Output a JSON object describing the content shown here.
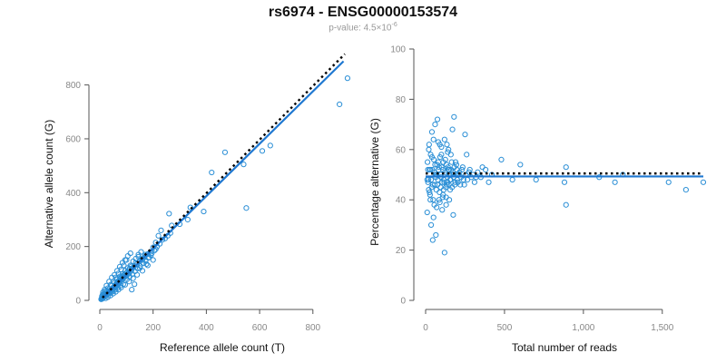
{
  "header": {
    "title": "rs6974 - ENSG00000153574",
    "pvalue_prefix": "p-value: 4.5×10",
    "pvalue_exponent": "-6"
  },
  "colors": {
    "points": "#2b8fd6",
    "fit_line": "#1f78d1",
    "reference_line": "#000000"
  },
  "chart_data": [
    {
      "type": "scatter",
      "title": "",
      "xlabel": "Reference allele count (T)",
      "ylabel": "Alternative allele count (G)",
      "xlim": [
        0,
        920
      ],
      "ylim": [
        0,
        920
      ],
      "xticks": [
        0,
        200,
        400,
        600,
        800
      ],
      "yticks": [
        0,
        200,
        400,
        600,
        800
      ],
      "reference_line": {
        "style": "dotted",
        "from": [
          10,
          10
        ],
        "to": [
          920,
          915
        ]
      },
      "fit_line": {
        "from": [
          10,
          8
        ],
        "to": [
          915,
          888
        ]
      },
      "points": [
        [
          930,
          825
        ],
        [
          900,
          728
        ],
        [
          640,
          575
        ],
        [
          610,
          555
        ],
        [
          540,
          505
        ],
        [
          470,
          550
        ],
        [
          420,
          475
        ],
        [
          550,
          343
        ],
        [
          340,
          345
        ],
        [
          390,
          330
        ],
        [
          300,
          283
        ],
        [
          330,
          300
        ],
        [
          270,
          278
        ],
        [
          260,
          322
        ],
        [
          230,
          260
        ],
        [
          220,
          240
        ],
        [
          210,
          215
        ],
        [
          200,
          197
        ],
        [
          210,
          190
        ],
        [
          190,
          180
        ],
        [
          180,
          172
        ],
        [
          170,
          165
        ],
        [
          165,
          158
        ],
        [
          155,
          152
        ],
        [
          150,
          146
        ],
        [
          145,
          162
        ],
        [
          140,
          135
        ],
        [
          135,
          140
        ],
        [
          130,
          128
        ],
        [
          125,
          122
        ],
        [
          120,
          115
        ],
        [
          118,
          126
        ],
        [
          115,
          108
        ],
        [
          112,
          118
        ],
        [
          110,
          100
        ],
        [
          108,
          110
        ],
        [
          105,
          97
        ],
        [
          103,
          105
        ],
        [
          100,
          93
        ],
        [
          98,
          90
        ],
        [
          96,
          100
        ],
        [
          94,
          88
        ],
        [
          92,
          96
        ],
        [
          90,
          84
        ],
        [
          88,
          92
        ],
        [
          86,
          80
        ],
        [
          84,
          88
        ],
        [
          82,
          76
        ],
        [
          80,
          84
        ],
        [
          78,
          72
        ],
        [
          76,
          80
        ],
        [
          75,
          68
        ],
        [
          73,
          75
        ],
        [
          72,
          64
        ],
        [
          70,
          72
        ],
        [
          69,
          60
        ],
        [
          68,
          70
        ],
        [
          66,
          58
        ],
        [
          65,
          66
        ],
        [
          64,
          55
        ],
        [
          62,
          62
        ],
        [
          61,
          52
        ],
        [
          60,
          58
        ],
        [
          58,
          50
        ],
        [
          57,
          55
        ],
        [
          56,
          48
        ],
        [
          55,
          52
        ],
        [
          54,
          45
        ],
        [
          52,
          50
        ],
        [
          51,
          42
        ],
        [
          50,
          47
        ],
        [
          49,
          40
        ],
        [
          48,
          45
        ],
        [
          46,
          38
        ],
        [
          45,
          43
        ],
        [
          44,
          36
        ],
        [
          43,
          40
        ],
        [
          42,
          34
        ],
        [
          40,
          38
        ],
        [
          39,
          32
        ],
        [
          38,
          35
        ],
        [
          36,
          30
        ],
        [
          35,
          33
        ],
        [
          34,
          28
        ],
        [
          33,
          30
        ],
        [
          32,
          26
        ],
        [
          30,
          28
        ],
        [
          29,
          24
        ],
        [
          28,
          26
        ],
        [
          26,
          22
        ],
        [
          25,
          24
        ],
        [
          24,
          20
        ],
        [
          23,
          22
        ],
        [
          22,
          18
        ],
        [
          20,
          20
        ],
        [
          19,
          16
        ],
        [
          18,
          18
        ],
        [
          17,
          14
        ],
        [
          16,
          16
        ],
        [
          15,
          12
        ],
        [
          14,
          14
        ],
        [
          13,
          10
        ],
        [
          12,
          12
        ],
        [
          11,
          8
        ],
        [
          10,
          10
        ],
        [
          9,
          6
        ],
        [
          8,
          8
        ],
        [
          7,
          5
        ],
        [
          6,
          6
        ],
        [
          5,
          4
        ],
        [
          12,
          30
        ],
        [
          18,
          40
        ],
        [
          25,
          55
        ],
        [
          35,
          70
        ],
        [
          45,
          85
        ],
        [
          55,
          95
        ],
        [
          65,
          110
        ],
        [
          75,
          125
        ],
        [
          85,
          140
        ],
        [
          95,
          150
        ],
        [
          105,
          165
        ],
        [
          115,
          175
        ],
        [
          100,
          150
        ],
        [
          90,
          130
        ],
        [
          80,
          115
        ],
        [
          70,
          100
        ],
        [
          60,
          85
        ],
        [
          50,
          70
        ],
        [
          40,
          58
        ],
        [
          30,
          45
        ],
        [
          20,
          35
        ],
        [
          15,
          25
        ],
        [
          10,
          20
        ],
        [
          8,
          15
        ],
        [
          22,
          8
        ],
        [
          30,
          12
        ],
        [
          40,
          18
        ],
        [
          50,
          25
        ],
        [
          60,
          32
        ],
        [
          70,
          40
        ],
        [
          80,
          48
        ],
        [
          95,
          58
        ],
        [
          110,
          70
        ],
        [
          125,
          82
        ],
        [
          140,
          95
        ],
        [
          160,
          110
        ],
        [
          180,
          130
        ],
        [
          200,
          150
        ],
        [
          120,
          40
        ],
        [
          130,
          60
        ],
        [
          150,
          120
        ],
        [
          160,
          150
        ],
        [
          170,
          170
        ],
        [
          175,
          135
        ],
        [
          185,
          160
        ],
        [
          195,
          175
        ],
        [
          205,
          185
        ],
        [
          215,
          200
        ],
        [
          225,
          210
        ],
        [
          235,
          225
        ],
        [
          245,
          230
        ],
        [
          255,
          240
        ],
        [
          265,
          250
        ],
        [
          135,
          155
        ],
        [
          145,
          170
        ],
        [
          155,
          180
        ],
        [
          125,
          145
        ],
        [
          115,
          130
        ],
        [
          105,
          120
        ],
        [
          95,
          110
        ],
        [
          85,
          98
        ],
        [
          75,
          88
        ],
        [
          65,
          78
        ],
        [
          55,
          65
        ],
        [
          45,
          55
        ],
        [
          35,
          42
        ],
        [
          28,
          35
        ],
        [
          20,
          26
        ],
        [
          14,
          18
        ],
        [
          88,
          60
        ],
        [
          78,
          55
        ],
        [
          68,
          48
        ],
        [
          58,
          40
        ],
        [
          48,
          33
        ],
        [
          38,
          26
        ],
        [
          102,
          78
        ],
        [
          112,
          88
        ],
        [
          122,
          98
        ],
        [
          132,
          108
        ],
        [
          142,
          118
        ],
        [
          152,
          128
        ],
        [
          162,
          138
        ],
        [
          172,
          148
        ],
        [
          182,
          158
        ],
        [
          192,
          168
        ]
      ]
    },
    {
      "type": "scatter",
      "title": "",
      "xlabel": "Total number of reads",
      "ylabel": "Percentage alternative (G)",
      "xlim": [
        0,
        1760
      ],
      "ylim": [
        0,
        100
      ],
      "xticks": [
        0,
        500,
        1000,
        1500
      ],
      "xtick_labels": [
        "0",
        "500",
        "1,000",
        "1,500"
      ],
      "yticks": [
        0,
        20,
        40,
        60,
        80,
        100
      ],
      "reference_line": {
        "style": "dotted",
        "y": 50.5,
        "from_x": 0,
        "to_x": 1760
      },
      "fit_line": {
        "y": 49.3,
        "from_x": 0,
        "to_x": 1760
      },
      "points": [
        [
          1760,
          47
        ],
        [
          1650,
          44
        ],
        [
          1540,
          47
        ],
        [
          1250,
          50
        ],
        [
          1200,
          47
        ],
        [
          1100,
          49
        ],
        [
          890,
          38
        ],
        [
          890,
          53
        ],
        [
          880,
          47
        ],
        [
          700,
          48
        ],
        [
          600,
          54
        ],
        [
          550,
          48
        ],
        [
          480,
          56
        ],
        [
          420,
          50
        ],
        [
          400,
          47
        ],
        [
          380,
          52
        ],
        [
          360,
          53
        ],
        [
          320,
          49
        ],
        [
          300,
          50
        ],
        [
          280,
          52
        ],
        [
          260,
          58
        ],
        [
          250,
          66
        ],
        [
          240,
          48
        ],
        [
          230,
          52
        ],
        [
          220,
          46
        ],
        [
          210,
          50
        ],
        [
          200,
          48
        ],
        [
          190,
          55
        ],
        [
          180,
          73
        ],
        [
          175,
          34
        ],
        [
          170,
          68
        ],
        [
          160,
          58
        ],
        [
          155,
          44
        ],
        [
          150,
          52
        ],
        [
          145,
          60
        ],
        [
          140,
          47
        ],
        [
          135,
          62
        ],
        [
          130,
          41
        ],
        [
          125,
          56
        ],
        [
          120,
          19
        ],
        [
          115,
          48
        ],
        [
          110,
          52
        ],
        [
          105,
          36
        ],
        [
          100,
          58
        ],
        [
          95,
          45
        ],
        [
          90,
          62
        ],
        [
          85,
          40
        ],
        [
          80,
          55
        ],
        [
          75,
          72
        ],
        [
          70,
          50
        ],
        [
          65,
          26
        ],
        [
          60,
          54
        ],
        [
          55,
          38
        ],
        [
          50,
          64
        ],
        [
          45,
          24
        ],
        [
          40,
          57
        ],
        [
          35,
          30
        ],
        [
          30,
          52
        ],
        [
          25,
          43
        ],
        [
          20,
          60
        ],
        [
          15,
          47
        ],
        [
          10,
          35
        ],
        [
          12,
          55
        ],
        [
          18,
          48
        ],
        [
          22,
          62
        ],
        [
          28,
          42
        ],
        [
          32,
          58
        ],
        [
          38,
          45
        ],
        [
          42,
          52
        ],
        [
          48,
          40
        ],
        [
          52,
          56
        ],
        [
          58,
          46
        ],
        [
          62,
          50
        ],
        [
          68,
          44
        ],
        [
          72,
          54
        ],
        [
          78,
          48
        ],
        [
          82,
          52
        ],
        [
          88,
          43
        ],
        [
          92,
          57
        ],
        [
          98,
          49
        ],
        [
          102,
          53
        ],
        [
          108,
          41
        ],
        [
          112,
          55
        ],
        [
          118,
          47
        ],
        [
          122,
          51
        ],
        [
          128,
          45
        ],
        [
          132,
          54
        ],
        [
          138,
          49
        ],
        [
          142,
          53
        ],
        [
          148,
          46
        ],
        [
          152,
          50
        ],
        [
          158,
          48
        ],
        [
          162,
          52
        ],
        [
          168,
          45
        ],
        [
          172,
          51
        ],
        [
          178,
          49
        ],
        [
          182,
          53
        ],
        [
          188,
          47
        ],
        [
          192,
          50
        ],
        [
          198,
          52
        ],
        [
          205,
          47
        ],
        [
          215,
          51
        ],
        [
          225,
          49
        ],
        [
          235,
          53
        ],
        [
          245,
          46
        ],
        [
          255,
          50
        ],
        [
          265,
          48
        ],
        [
          275,
          51
        ],
        [
          290,
          49
        ],
        [
          310,
          47
        ],
        [
          330,
          51
        ],
        [
          350,
          49
        ],
        [
          25,
          52
        ],
        [
          35,
          48
        ],
        [
          45,
          46
        ],
        [
          55,
          51
        ],
        [
          65,
          49
        ],
        [
          75,
          46
        ],
        [
          85,
          53
        ],
        [
          95,
          50
        ],
        [
          105,
          47
        ],
        [
          115,
          44
        ],
        [
          125,
          50
        ],
        [
          135,
          46
        ],
        [
          145,
          52
        ],
        [
          155,
          48
        ],
        [
          165,
          55
        ],
        [
          175,
          50
        ],
        [
          185,
          46
        ],
        [
          195,
          54
        ],
        [
          40,
          67
        ],
        [
          60,
          70
        ],
        [
          80,
          63
        ],
        [
          100,
          61
        ],
        [
          120,
          64
        ],
        [
          140,
          59
        ],
        [
          50,
          33
        ],
        [
          70,
          37
        ],
        [
          90,
          39
        ],
        [
          110,
          42
        ],
        [
          130,
          38
        ],
        [
          150,
          40
        ],
        [
          30,
          40
        ],
        [
          20,
          44
        ],
        [
          15,
          52
        ],
        [
          10,
          48
        ]
      ]
    }
  ]
}
